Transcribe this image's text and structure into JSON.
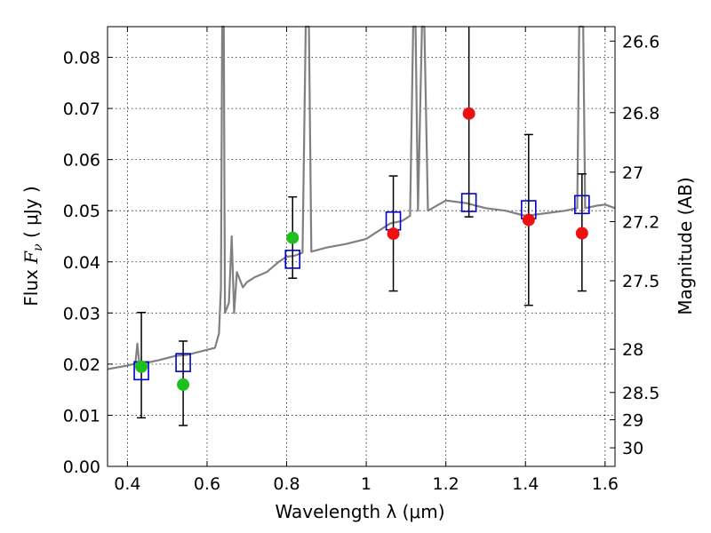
{
  "chart_data": {
    "type": "scatter",
    "xlabel": "Wavelength  λ (μm)",
    "ylabel": "Flux  F_ν  ( μJy )",
    "ylabel_parts": {
      "pre": "Flux  ",
      "sym": "F",
      "sub": "ν",
      "post": "  ( μJy )"
    },
    "y2label": "Magnitude (AB)",
    "xlim": [
      0.35,
      1.625
    ],
    "ylim": [
      0.0,
      0.086
    ],
    "grid": true,
    "x_ticks": [
      {
        "v": 0.4,
        "label": "0.4"
      },
      {
        "v": 0.6,
        "label": "0.6"
      },
      {
        "v": 0.8,
        "label": "0.8"
      },
      {
        "v": 1.0,
        "label": "1"
      },
      {
        "v": 1.2,
        "label": "1.2"
      },
      {
        "v": 1.4,
        "label": "1.4"
      },
      {
        "v": 1.6,
        "label": "1.6"
      }
    ],
    "y_ticks": [
      {
        "v": 0.0,
        "label": "0.00"
      },
      {
        "v": 0.01,
        "label": "0.01"
      },
      {
        "v": 0.02,
        "label": "0.02"
      },
      {
        "v": 0.03,
        "label": "0.03"
      },
      {
        "v": 0.04,
        "label": "0.04"
      },
      {
        "v": 0.05,
        "label": "0.05"
      },
      {
        "v": 0.06,
        "label": "0.06"
      },
      {
        "v": 0.07,
        "label": "0.07"
      },
      {
        "v": 0.08,
        "label": "0.08"
      }
    ],
    "mag_ticks": [
      {
        "v": 26.6,
        "label": "26.6"
      },
      {
        "v": 26.8,
        "label": "26.8"
      },
      {
        "v": 27.0,
        "label": "27"
      },
      {
        "v": 27.2,
        "label": "27.2"
      },
      {
        "v": 27.5,
        "label": "27.5"
      },
      {
        "v": 28.0,
        "label": "28"
      },
      {
        "v": 28.5,
        "label": "28.5"
      },
      {
        "v": 29.0,
        "label": "29"
      },
      {
        "v": 30.0,
        "label": "30"
      }
    ],
    "colors": {
      "spectrum": "#808080",
      "model_square": "#0000cc",
      "hst_points": "#1fbf1f",
      "nir_points": "#ee1111",
      "errorbar": "#000000"
    },
    "spectrum": {
      "name": "",
      "points": [
        [
          0.35,
          0.019
        ],
        [
          0.37,
          0.0193
        ],
        [
          0.4,
          0.0197
        ],
        [
          0.42,
          0.0201
        ],
        [
          0.425,
          0.024
        ],
        [
          0.43,
          0.02
        ],
        [
          0.45,
          0.0203
        ],
        [
          0.48,
          0.0208
        ],
        [
          0.5,
          0.0212
        ],
        [
          0.52,
          0.0216
        ],
        [
          0.55,
          0.0218
        ],
        [
          0.57,
          0.0222
        ],
        [
          0.6,
          0.0228
        ],
        [
          0.62,
          0.0232
        ],
        [
          0.63,
          0.026
        ],
        [
          0.635,
          0.035
        ],
        [
          0.638,
          0.086
        ],
        [
          0.642,
          0.086
        ],
        [
          0.645,
          0.03
        ],
        [
          0.655,
          0.032
        ],
        [
          0.662,
          0.045
        ],
        [
          0.668,
          0.03
        ],
        [
          0.675,
          0.038
        ],
        [
          0.69,
          0.035
        ],
        [
          0.7,
          0.036
        ],
        [
          0.72,
          0.037
        ],
        [
          0.75,
          0.038
        ],
        [
          0.78,
          0.04
        ],
        [
          0.8,
          0.041
        ],
        [
          0.82,
          0.0412
        ],
        [
          0.84,
          0.0418
        ],
        [
          0.848,
          0.086
        ],
        [
          0.856,
          0.086
        ],
        [
          0.862,
          0.042
        ],
        [
          0.9,
          0.0428
        ],
        [
          0.95,
          0.0435
        ],
        [
          1.0,
          0.0445
        ],
        [
          1.03,
          0.046
        ],
        [
          1.06,
          0.0475
        ],
        [
          1.09,
          0.048
        ],
        [
          1.11,
          0.049
        ],
        [
          1.118,
          0.086
        ],
        [
          1.124,
          0.086
        ],
        [
          1.13,
          0.05
        ],
        [
          1.14,
          0.086
        ],
        [
          1.146,
          0.086
        ],
        [
          1.155,
          0.05
        ],
        [
          1.2,
          0.052
        ],
        [
          1.25,
          0.0515
        ],
        [
          1.3,
          0.0505
        ],
        [
          1.35,
          0.05
        ],
        [
          1.4,
          0.049
        ],
        [
          1.45,
          0.0495
        ],
        [
          1.5,
          0.05
        ],
        [
          1.53,
          0.0505
        ],
        [
          1.535,
          0.086
        ],
        [
          1.545,
          0.086
        ],
        [
          1.55,
          0.0505
        ],
        [
          1.58,
          0.051
        ],
        [
          1.6,
          0.0512
        ],
        [
          1.625,
          0.0505
        ]
      ]
    },
    "model_squares": [
      {
        "x": 0.435,
        "y": 0.0187
      },
      {
        "x": 0.54,
        "y": 0.0203
      },
      {
        "x": 0.815,
        "y": 0.0405
      },
      {
        "x": 1.068,
        "y": 0.048
      },
      {
        "x": 1.258,
        "y": 0.0516
      },
      {
        "x": 1.408,
        "y": 0.0502
      },
      {
        "x": 1.542,
        "y": 0.0512
      }
    ],
    "hst_points": [
      {
        "x": 0.435,
        "y": 0.0195,
        "err_lo": 0.0095,
        "err_hi": 0.0301
      },
      {
        "x": 0.54,
        "y": 0.016,
        "err_lo": 0.008,
        "err_hi": 0.0245
      },
      {
        "x": 0.815,
        "y": 0.0447,
        "err_lo": 0.0368,
        "err_hi": 0.0527
      }
    ],
    "nir_points": [
      {
        "x": 1.068,
        "y": 0.0455,
        "err_lo": 0.0343,
        "err_hi": 0.0568
      },
      {
        "x": 1.258,
        "y": 0.069,
        "err_lo": 0.0488,
        "err_hi": 0.086
      },
      {
        "x": 1.408,
        "y": 0.0482,
        "err_lo": 0.0315,
        "err_hi": 0.0649
      },
      {
        "x": 1.542,
        "y": 0.0456,
        "err_lo": 0.0343,
        "err_hi": 0.0572
      }
    ]
  }
}
